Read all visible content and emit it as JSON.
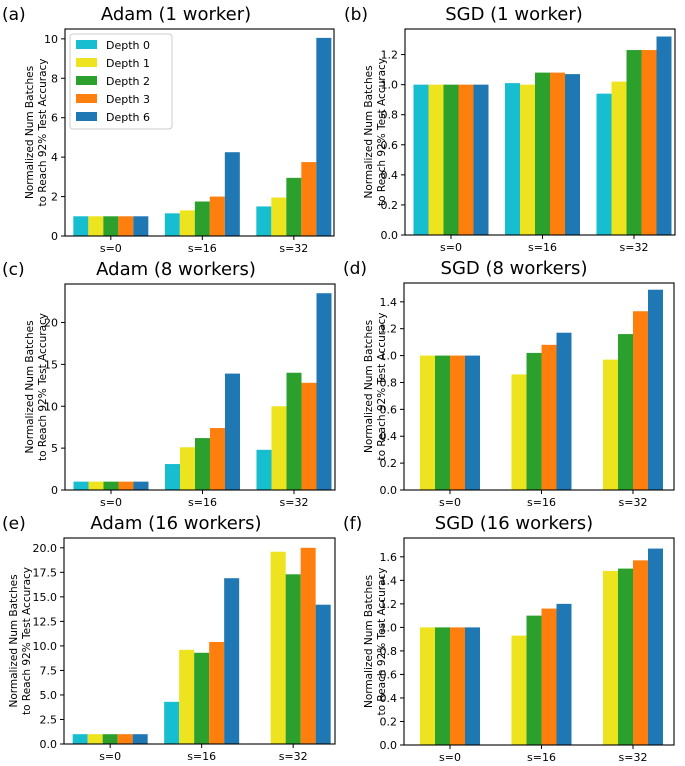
{
  "colors": {
    "Depth 0": "#17becf",
    "Depth 1": "#ede31e",
    "Depth 2": "#2ca02c",
    "Depth 3": "#ff7f0e",
    "Depth 6": "#1f77b4"
  },
  "legend": {
    "entries": [
      "Depth 0",
      "Depth 1",
      "Depth 2",
      "Depth 3",
      "Depth 6"
    ],
    "placement": "top-left of panel (a)"
  },
  "chart_data": [
    {
      "panel": "(a)",
      "title": "Adam (1 worker)",
      "type": "bar",
      "ylabel": [
        "Normalized Num Batches",
        "to Reach 92% Test Accuracy"
      ],
      "categories": [
        "s=0",
        "s=16",
        "s=32"
      ],
      "ylim": [
        0,
        10.5
      ],
      "yticks": [
        0,
        2,
        4,
        6,
        8,
        10
      ],
      "ytick_labels": [
        "0",
        "2",
        "4",
        "6",
        "8",
        "10"
      ],
      "series": [
        {
          "name": "Depth 0",
          "values": [
            1.0,
            1.15,
            1.5
          ]
        },
        {
          "name": "Depth 1",
          "values": [
            1.0,
            1.3,
            1.95
          ]
        },
        {
          "name": "Depth 2",
          "values": [
            1.0,
            1.75,
            2.95
          ]
        },
        {
          "name": "Depth 3",
          "values": [
            1.0,
            2.0,
            3.75
          ]
        },
        {
          "name": "Depth 6",
          "values": [
            1.0,
            4.25,
            10.05
          ]
        }
      ]
    },
    {
      "panel": "(b)",
      "title": "SGD (1 worker)",
      "type": "bar",
      "ylabel": [
        "Normalized Num Batches",
        "to Reach 92% Test Accuracy"
      ],
      "categories": [
        "s=0",
        "s=16",
        "s=32"
      ],
      "ylim": [
        0,
        1.37
      ],
      "yticks": [
        0,
        0.2,
        0.4,
        0.6,
        0.8,
        1.0,
        1.2
      ],
      "ytick_labels": [
        "0.0",
        "0.2",
        "0.4",
        "0.6",
        "0.8",
        "1.0",
        "1.2"
      ],
      "series": [
        {
          "name": "Depth 0",
          "values": [
            1.0,
            1.01,
            0.94
          ]
        },
        {
          "name": "Depth 1",
          "values": [
            1.0,
            1.0,
            1.02
          ]
        },
        {
          "name": "Depth 2",
          "values": [
            1.0,
            1.08,
            1.23
          ]
        },
        {
          "name": "Depth 3",
          "values": [
            1.0,
            1.08,
            1.23
          ]
        },
        {
          "name": "Depth 6",
          "values": [
            1.0,
            1.07,
            1.32
          ]
        }
      ]
    },
    {
      "panel": "(c)",
      "title": "Adam (8 workers)",
      "type": "bar",
      "ylabel": [
        "Normalized Num Batches",
        "to Reach 92% Test Accuracy"
      ],
      "categories": [
        "s=0",
        "s=16",
        "s=32"
      ],
      "ylim": [
        0,
        24.6
      ],
      "yticks": [
        0,
        5,
        10,
        15,
        20
      ],
      "ytick_labels": [
        "0",
        "5",
        "10",
        "15",
        "20"
      ],
      "series": [
        {
          "name": "Depth 0",
          "values": [
            1.0,
            3.1,
            4.8
          ]
        },
        {
          "name": "Depth 1",
          "values": [
            1.0,
            5.1,
            10.0
          ]
        },
        {
          "name": "Depth 2",
          "values": [
            1.0,
            6.2,
            14.0
          ]
        },
        {
          "name": "Depth 3",
          "values": [
            1.0,
            7.4,
            12.8
          ]
        },
        {
          "name": "Depth 6",
          "values": [
            1.0,
            13.9,
            23.5
          ]
        }
      ]
    },
    {
      "panel": "(d)",
      "title": "SGD (8 workers)",
      "type": "bar",
      "ylabel": [
        "Normalized Num Batches",
        "to Reach 92% Test Accuracy"
      ],
      "categories": [
        "s=0",
        "s=16",
        "s=32"
      ],
      "ylim": [
        0,
        1.54
      ],
      "yticks": [
        0,
        0.2,
        0.4,
        0.6,
        0.8,
        1.0,
        1.2,
        1.4
      ],
      "ytick_labels": [
        "0.0",
        "0.2",
        "0.4",
        "0.6",
        "0.8",
        "1.0",
        "1.2",
        "1.4"
      ],
      "series": [
        {
          "name": "Depth 1",
          "values": [
            1.0,
            0.86,
            0.97
          ]
        },
        {
          "name": "Depth 2",
          "values": [
            1.0,
            1.02,
            1.16
          ]
        },
        {
          "name": "Depth 3",
          "values": [
            1.0,
            1.08,
            1.33
          ]
        },
        {
          "name": "Depth 6",
          "values": [
            1.0,
            1.17,
            1.49
          ]
        }
      ]
    },
    {
      "panel": "(e)",
      "title": "Adam (16 workers)",
      "type": "bar",
      "ylabel": [
        "Normalized Num Batches",
        "to Reach 92% Test Accuracy"
      ],
      "categories": [
        "s=0",
        "s=16",
        "s=32"
      ],
      "ylim": [
        0,
        21.0
      ],
      "yticks": [
        0,
        2.5,
        5,
        7.5,
        10,
        12.5,
        15,
        17.5,
        20
      ],
      "ytick_labels": [
        "0.0",
        "2.5",
        "5.0",
        "7.5",
        "10.0",
        "12.5",
        "15.0",
        "17.5",
        "20.0"
      ],
      "series": [
        {
          "name": "Depth 0",
          "values": [
            1.0,
            4.3,
            0
          ]
        },
        {
          "name": "Depth 1",
          "values": [
            1.0,
            9.6,
            19.6
          ]
        },
        {
          "name": "Depth 2",
          "values": [
            1.0,
            9.3,
            17.3
          ]
        },
        {
          "name": "Depth 3",
          "values": [
            1.0,
            10.4,
            20.0
          ]
        },
        {
          "name": "Depth 6",
          "values": [
            1.0,
            16.9,
            14.2
          ]
        }
      ]
    },
    {
      "panel": "(f)",
      "title": "SGD (16 workers)",
      "type": "bar",
      "ylabel": [
        "Normalized Num Batches",
        "to Reach 92% Test Accuracy"
      ],
      "categories": [
        "s=0",
        "s=16",
        "s=32"
      ],
      "ylim": [
        0,
        1.76
      ],
      "yticks": [
        0,
        0.2,
        0.4,
        0.6,
        0.8,
        1.0,
        1.2,
        1.4,
        1.6
      ],
      "ytick_labels": [
        "0.0",
        "0.2",
        "0.4",
        "0.6",
        "0.8",
        "1.0",
        "1.2",
        "1.4",
        "1.6"
      ],
      "series": [
        {
          "name": "Depth 1",
          "values": [
            1.0,
            0.93,
            1.48
          ]
        },
        {
          "name": "Depth 2",
          "values": [
            1.0,
            1.1,
            1.5
          ]
        },
        {
          "name": "Depth 3",
          "values": [
            1.0,
            1.16,
            1.57
          ]
        },
        {
          "name": "Depth 6",
          "values": [
            1.0,
            1.2,
            1.67
          ]
        }
      ]
    }
  ]
}
